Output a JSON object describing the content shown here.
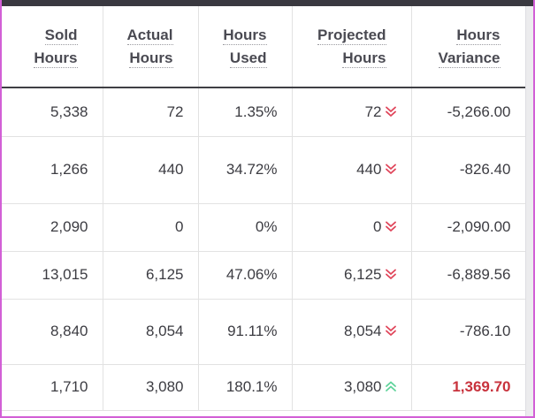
{
  "headers": {
    "sold_hours": [
      "Sold",
      "Hours"
    ],
    "actual_hours": [
      "Actual",
      "Hours"
    ],
    "hours_used": [
      "Hours",
      "Used"
    ],
    "projected_hours": [
      "Projected",
      "Hours"
    ],
    "hours_variance": [
      "Hours",
      "Variance"
    ]
  },
  "rows": [
    {
      "sold": "5,338",
      "actual": "72",
      "used": "1.35%",
      "projected": "72",
      "trend": "down",
      "variance": "-5,266.00",
      "variance_highlight": false
    },
    {
      "sold": "1,266",
      "actual": "440",
      "used": "34.72%",
      "projected": "440",
      "trend": "down",
      "variance": "-826.40",
      "variance_highlight": false
    },
    {
      "sold": "2,090",
      "actual": "0",
      "used": "0%",
      "projected": "0",
      "trend": "down",
      "variance": "-2,090.00",
      "variance_highlight": false
    },
    {
      "sold": "13,015",
      "actual": "6,125",
      "used": "47.06%",
      "projected": "6,125",
      "trend": "down",
      "variance": "-6,889.56",
      "variance_highlight": false
    },
    {
      "sold": "8,840",
      "actual": "8,054",
      "used": "91.11%",
      "projected": "8,054",
      "trend": "down",
      "variance": "-786.10",
      "variance_highlight": false
    },
    {
      "sold": "1,710",
      "actual": "3,080",
      "used": "180.1%",
      "projected": "3,080",
      "trend": "up",
      "variance": "1,369.70",
      "variance_highlight": true
    }
  ],
  "colors": {
    "header_text": "#4a4a52",
    "cell_text": "#3c3c42",
    "trend_down": "#e0455a",
    "trend_up": "#5fd39a",
    "variance_highlight": "#c8323c",
    "frame_border": "#d25fd6",
    "top_bar": "#3a3940"
  },
  "icons": {
    "trend_down": "double-chevron-down-icon",
    "trend_up": "double-chevron-up-icon"
  }
}
